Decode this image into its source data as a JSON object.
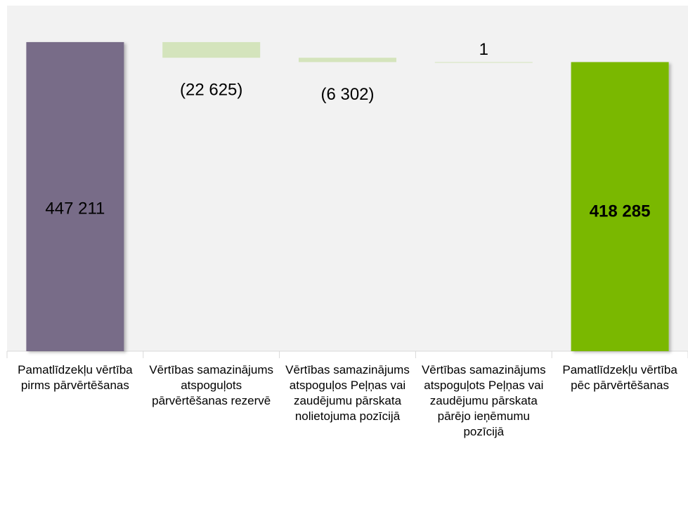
{
  "chart_data": {
    "type": "waterfall",
    "categories": [
      "Pamatlīdzekļu vērtība pirms pārvērtēšanas",
      "Vērtības samazinājums atspoguļots pārvērtēšanas rezervē",
      "Vērtības samazinājums atspoguļos Peļņas vai zaudējumu pārskata nolietojuma pozīcijā",
      "Vērtības samazinājums atspoguļots Peļņas vai zaudējumu pārskata pārējo ieņēmumu pozīcijā",
      "Pamatlīdzekļu vērtība pēc pārvērtēšanas"
    ],
    "values": [
      447211,
      -22625,
      -6302,
      1,
      418285
    ],
    "value_labels": [
      "447 211",
      "(22 625)",
      "(6 302)",
      "1",
      "418 285"
    ],
    "measure": [
      "absolute",
      "relative",
      "relative",
      "relative",
      "total"
    ],
    "colors": [
      "#786c88",
      "#d4e4bc",
      "#d4e4bc",
      "#d4e4bc",
      "#7ab800"
    ],
    "ylim": [
      0,
      500000
    ]
  }
}
